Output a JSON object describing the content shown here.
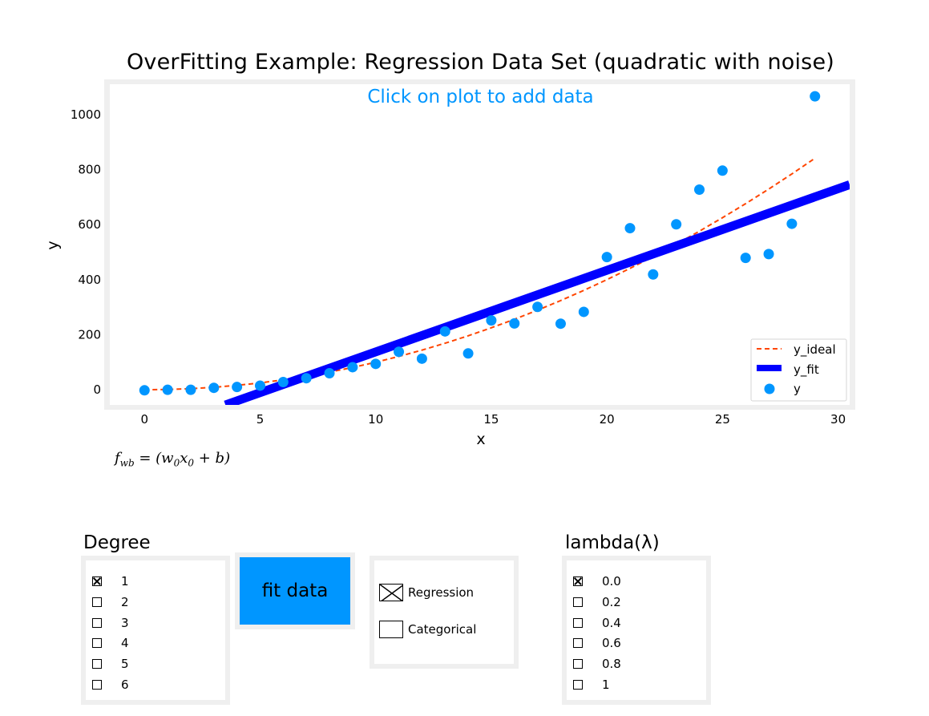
{
  "title": "OverFitting Example: Regression Data Set (quadratic with noise)",
  "hint": "Click on plot to add data",
  "formula": {
    "prefix": "f",
    "prefix_sub": "wb",
    "body": " = (w",
    "w_sub": "0",
    "x": "x",
    "x_sub": "0",
    "tail": " + b)"
  },
  "colors": {
    "ideal": "#ff4500",
    "fit": "#0000ff",
    "points": "#0096ff",
    "accent": "#0096ff",
    "panel": "#efefef"
  },
  "chart_data": {
    "type": "scatter",
    "title": "OverFitting Example: Regression Data Set (quadratic with noise)",
    "xlabel": "x",
    "ylabel": "y",
    "xlim": [
      -1.5,
      30.5
    ],
    "ylim": [
      -55,
      1110
    ],
    "xticks": [
      0,
      5,
      10,
      15,
      20,
      25,
      30
    ],
    "yticks": [
      0,
      200,
      400,
      600,
      800,
      1000
    ],
    "legend_position": "lower-right",
    "grid": false,
    "series": [
      {
        "name": "y_ideal",
        "kind": "dashed-line",
        "color": "#ff4500",
        "x": [
          0,
          1,
          2,
          3,
          4,
          5,
          6,
          7,
          8,
          9,
          10,
          11,
          12,
          13,
          14,
          15,
          16,
          17,
          18,
          19,
          20,
          21,
          22,
          23,
          24,
          25,
          26,
          27,
          28,
          29
        ],
        "y": [
          0,
          1,
          4,
          9,
          16,
          25,
          36,
          49,
          64,
          81,
          100,
          121,
          144,
          169,
          196,
          225,
          256,
          289,
          324,
          361,
          400,
          441,
          484,
          529,
          576,
          625,
          676,
          729,
          784,
          841
        ]
      },
      {
        "name": "y_fit",
        "kind": "thick-line",
        "color": "#0000ff",
        "x": [
          3.5,
          30.5
        ],
        "y": [
          -55,
          745
        ]
      },
      {
        "name": "y",
        "kind": "points",
        "color": "#0096ff",
        "x": [
          0,
          1,
          2,
          3,
          4,
          5,
          6,
          7,
          8,
          9,
          10,
          11,
          12,
          13,
          14,
          15,
          16,
          17,
          18,
          19,
          20,
          21,
          22,
          23,
          24,
          25,
          26,
          27,
          28,
          29
        ],
        "y": [
          -2,
          0,
          0,
          7,
          10,
          15,
          28,
          42,
          60,
          82,
          94,
          138,
          113,
          212,
          132,
          252,
          241,
          301,
          240,
          283,
          482,
          587,
          419,
          601,
          727,
          796,
          479,
          493,
          603,
          1066
        ]
      }
    ]
  },
  "degree": {
    "title": "Degree",
    "options": [
      {
        "label": "1",
        "checked": true
      },
      {
        "label": "2",
        "checked": false
      },
      {
        "label": "3",
        "checked": false
      },
      {
        "label": "4",
        "checked": false
      },
      {
        "label": "5",
        "checked": false
      },
      {
        "label": "6",
        "checked": false
      }
    ]
  },
  "fit_button": {
    "label": "fit data"
  },
  "mode": {
    "options": [
      {
        "label": "Regression",
        "checked": true
      },
      {
        "label": "Categorical",
        "checked": false
      }
    ]
  },
  "lambda": {
    "title": "lambda(λ)",
    "options": [
      {
        "label": "0.0",
        "checked": true
      },
      {
        "label": "0.2",
        "checked": false
      },
      {
        "label": "0.4",
        "checked": false
      },
      {
        "label": "0.6",
        "checked": false
      },
      {
        "label": "0.8",
        "checked": false
      },
      {
        "label": "1",
        "checked": false
      }
    ]
  }
}
